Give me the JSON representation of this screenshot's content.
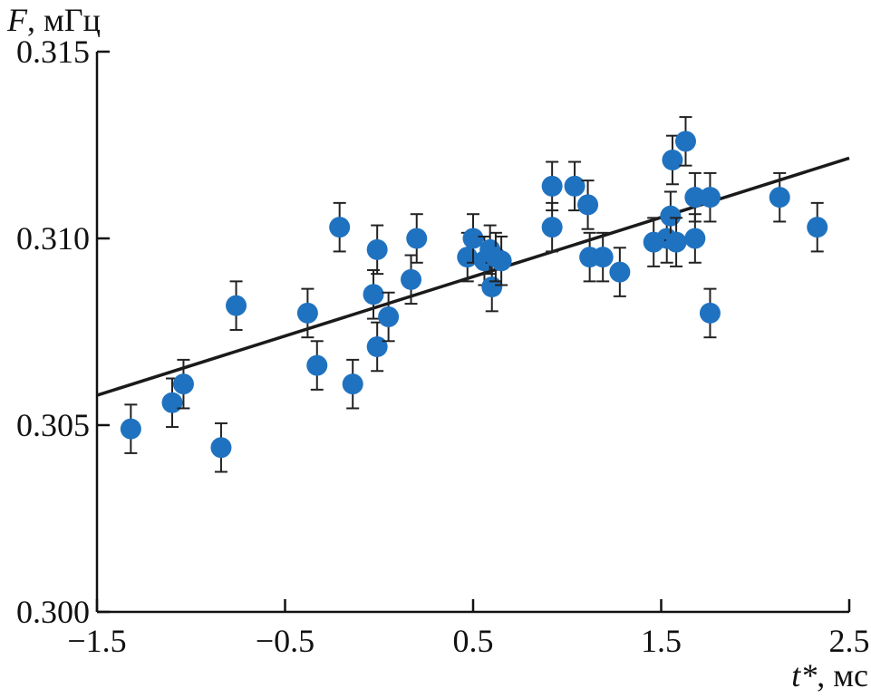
{
  "chart_data": {
    "type": "scatter",
    "ylabel_var": "F",
    "ylabel_unit": ", мГц",
    "xlabel_var": "t*",
    "xlabel_unit": ", мс",
    "xlim": [
      -1.5,
      2.5
    ],
    "ylim": [
      0.3,
      0.315
    ],
    "xticks": [
      -1.5,
      -0.5,
      0.5,
      1.5,
      2.5
    ],
    "xtick_labels": [
      "−1.5",
      "−0.5",
      "0.5",
      "1.5",
      "2.5"
    ],
    "yticks": [
      0.3,
      0.305,
      0.31,
      0.315
    ],
    "ytick_labels": [
      "0.300",
      "0.305",
      "0.310",
      "0.315"
    ],
    "grid": false,
    "marker_color": "#1f72c0",
    "line_color": "#1a1a1a",
    "error_bar": 0.00065,
    "points": [
      {
        "x": -1.32,
        "y": 0.3049
      },
      {
        "x": -1.1,
        "y": 0.3056
      },
      {
        "x": -1.04,
        "y": 0.3061
      },
      {
        "x": -0.84,
        "y": 0.3044
      },
      {
        "x": -0.76,
        "y": 0.3082
      },
      {
        "x": -0.38,
        "y": 0.308
      },
      {
        "x": -0.33,
        "y": 0.3066
      },
      {
        "x": -0.21,
        "y": 0.3103
      },
      {
        "x": -0.14,
        "y": 0.3061
      },
      {
        "x": -0.03,
        "y": 0.3085
      },
      {
        "x": -0.01,
        "y": 0.3097
      },
      {
        "x": -0.01,
        "y": 0.3071
      },
      {
        "x": 0.05,
        "y": 0.3079
      },
      {
        "x": 0.17,
        "y": 0.3089
      },
      {
        "x": 0.2,
        "y": 0.31
      },
      {
        "x": 0.47,
        "y": 0.3095
      },
      {
        "x": 0.5,
        "y": 0.31
      },
      {
        "x": 0.56,
        "y": 0.3094
      },
      {
        "x": 0.59,
        "y": 0.3097
      },
      {
        "x": 0.6,
        "y": 0.3087
      },
      {
        "x": 0.62,
        "y": 0.3095
      },
      {
        "x": 0.65,
        "y": 0.3094
      },
      {
        "x": 0.92,
        "y": 0.3114
      },
      {
        "x": 0.92,
        "y": 0.3103
      },
      {
        "x": 1.04,
        "y": 0.3114
      },
      {
        "x": 1.11,
        "y": 0.3109
      },
      {
        "x": 1.12,
        "y": 0.3095
      },
      {
        "x": 1.19,
        "y": 0.3095
      },
      {
        "x": 1.28,
        "y": 0.3091
      },
      {
        "x": 1.46,
        "y": 0.3099
      },
      {
        "x": 1.53,
        "y": 0.31
      },
      {
        "x": 1.55,
        "y": 0.3106
      },
      {
        "x": 1.56,
        "y": 0.3121
      },
      {
        "x": 1.58,
        "y": 0.3099
      },
      {
        "x": 1.63,
        "y": 0.3126
      },
      {
        "x": 1.68,
        "y": 0.3111
      },
      {
        "x": 1.68,
        "y": 0.31
      },
      {
        "x": 1.76,
        "y": 0.3111
      },
      {
        "x": 1.76,
        "y": 0.308
      },
      {
        "x": 2.13,
        "y": 0.3111
      },
      {
        "x": 2.33,
        "y": 0.3103
      }
    ],
    "fit_line": {
      "x": [
        -1.5,
        2.5
      ],
      "y": [
        0.3058,
        0.31215
      ]
    }
  }
}
